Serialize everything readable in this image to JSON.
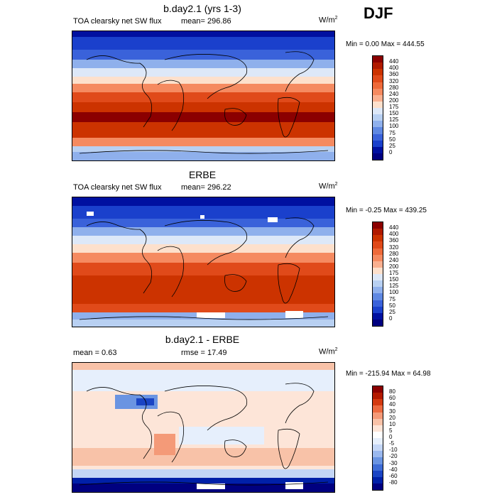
{
  "season": "DJF",
  "panels": [
    {
      "title": "b.day2.1 (yrs 1-3)",
      "left": "TOA clearsky net SW flux",
      "mid": "mean= 296.86",
      "units": "W/m",
      "units_sup": "2",
      "minmax": "Min =   0.00 Max = 444.55",
      "ticks": [
        "440",
        "400",
        "360",
        "320",
        "280",
        "240",
        "200",
        "175",
        "150",
        "125",
        "100",
        "75",
        "50",
        "25",
        "0"
      ]
    },
    {
      "title": "ERBE",
      "left": "TOA clearsky net SW flux",
      "mid": "mean= 296.22",
      "units": "W/m",
      "units_sup": "2",
      "minmax": "Min =  -0.25 Max = 439.25",
      "ticks": [
        "440",
        "400",
        "360",
        "320",
        "280",
        "240",
        "200",
        "175",
        "150",
        "125",
        "100",
        "75",
        "50",
        "25",
        "0"
      ]
    },
    {
      "title": "b.day2.1 - ERBE",
      "left": "mean =   0.63",
      "mid": "rmse =  17.49",
      "units": "W/m",
      "units_sup": "2",
      "minmax": "Min = -215.94 Max =  64.98",
      "ticks": [
        "80",
        "60",
        "40",
        "30",
        "20",
        "10",
        "5",
        "0",
        "-5",
        "-10",
        "-20",
        "-30",
        "-40",
        "-60",
        "-80"
      ]
    }
  ],
  "colors": {
    "flux_scale": [
      "#8b0000",
      "#b01a00",
      "#cc3300",
      "#e04a1a",
      "#ee6a3a",
      "#f58a60",
      "#fab090",
      "#fde0cc",
      "#dde8f8",
      "#b8d0f2",
      "#8fb0ec",
      "#5f88e2",
      "#3a62da",
      "#1a40cc",
      "#0010a0",
      "#000080"
    ],
    "diff_scale": [
      "#8b0000",
      "#b31a00",
      "#d43a10",
      "#ec6a40",
      "#f49a78",
      "#f8c2a8",
      "#fde5d8",
      "#ffffff",
      "#e6effc",
      "#c4d6f6",
      "#9ab8ee",
      "#6a94e2",
      "#3e6cd6",
      "#1a44c4",
      "#0020a8",
      "#000080"
    ]
  }
}
